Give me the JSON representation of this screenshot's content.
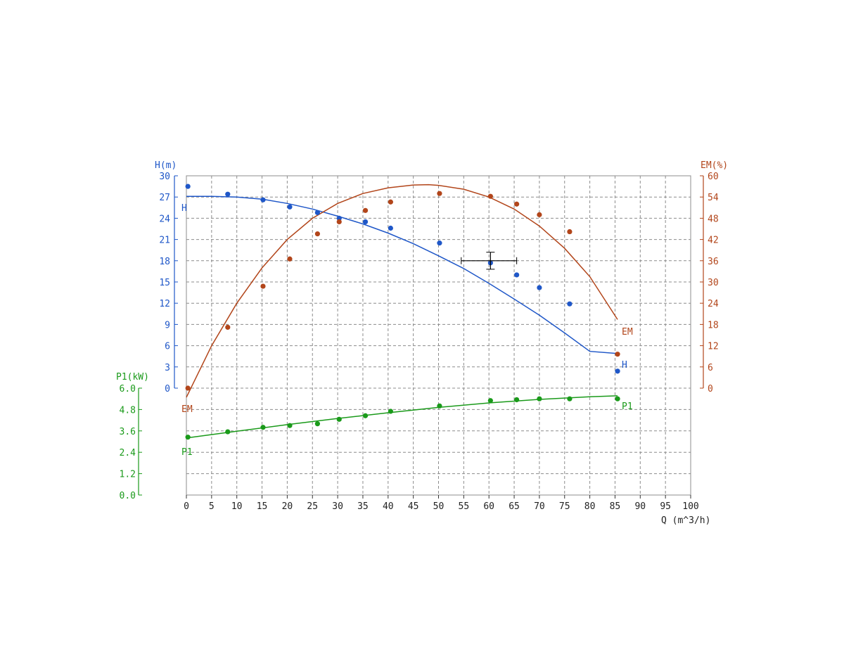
{
  "chart_data": {
    "type": "line",
    "x": {
      "label": "Q (m^3/h)",
      "range": [
        0,
        100
      ],
      "ticks": [
        "0",
        "5",
        "10",
        "15",
        "20",
        "25",
        "30",
        "35",
        "40",
        "45",
        "50",
        "55",
        "60",
        "65",
        "70",
        "75",
        "80",
        "85",
        "90",
        "95",
        "100"
      ]
    },
    "axes": {
      "H": {
        "label": "H(m)",
        "range": [
          0,
          30
        ],
        "ticks": [
          "0",
          "3",
          "6",
          "9",
          "12",
          "15",
          "18",
          "21",
          "24",
          "27",
          "30"
        ],
        "color": "#1f57c8"
      },
      "EM": {
        "label": "EM(%)",
        "range": [
          0,
          60
        ],
        "ticks": [
          "0",
          "6",
          "12",
          "18",
          "24",
          "30",
          "36",
          "42",
          "48",
          "54",
          "60"
        ],
        "color": "#b2451a"
      },
      "P1": {
        "label": "P1(kW)",
        "range": [
          0,
          6
        ],
        "ticks": [
          "0.0",
          "1.2",
          "2.4",
          "3.6",
          "4.8",
          "6.0"
        ],
        "color": "#1a9a1a"
      }
    },
    "series": [
      {
        "name": "H",
        "axis": "H",
        "color": "#1f57c8",
        "points": [
          [
            0.3,
            28.5
          ],
          [
            8.2,
            27.4
          ],
          [
            15.2,
            26.6
          ],
          [
            20.5,
            25.6
          ],
          [
            26,
            24.8
          ],
          [
            30.3,
            24.0
          ],
          [
            35.5,
            23.5
          ],
          [
            40.5,
            22.6
          ],
          [
            50.2,
            20.5
          ],
          [
            60.3,
            17.7
          ],
          [
            65.5,
            16.0
          ],
          [
            70,
            14.2
          ],
          [
            76,
            11.9
          ],
          [
            85.5,
            2.4
          ]
        ],
        "curve": [
          [
            0,
            27.1
          ],
          [
            5,
            27.1
          ],
          [
            10,
            27.0
          ],
          [
            15,
            26.7
          ],
          [
            20,
            26.1
          ],
          [
            25,
            25.3
          ],
          [
            30,
            24.3
          ],
          [
            35,
            23.2
          ],
          [
            40,
            21.9
          ],
          [
            45,
            20.4
          ],
          [
            50,
            18.7
          ],
          [
            55,
            16.9
          ],
          [
            60,
            14.8
          ],
          [
            65,
            12.6
          ],
          [
            70,
            10.3
          ],
          [
            75,
            7.8
          ],
          [
            80,
            5.2
          ],
          [
            85.5,
            4.9
          ]
        ],
        "end_label": "H"
      },
      {
        "name": "EM",
        "axis": "EM",
        "color": "#b2451a",
        "points": [
          [
            0.3,
            0.0
          ],
          [
            8.2,
            17.2
          ],
          [
            15.2,
            28.8
          ],
          [
            20.5,
            36.5
          ],
          [
            26,
            43.6
          ],
          [
            30.3,
            47.0
          ],
          [
            35.5,
            50.2
          ],
          [
            40.5,
            52.6
          ],
          [
            50.2,
            55.0
          ],
          [
            60.3,
            54.2
          ],
          [
            65.5,
            52.0
          ],
          [
            70,
            49.0
          ],
          [
            76,
            44.2
          ],
          [
            85.5,
            9.6
          ]
        ],
        "curve": [
          [
            0,
            -2.6
          ],
          [
            5,
            12.0
          ],
          [
            10,
            24.0
          ],
          [
            15,
            34.0
          ],
          [
            20,
            42.0
          ],
          [
            25,
            48.0
          ],
          [
            30,
            52.2
          ],
          [
            35,
            55.0
          ],
          [
            40,
            56.6
          ],
          [
            45,
            57.4
          ],
          [
            48,
            57.5
          ],
          [
            50,
            57.3
          ],
          [
            55,
            56.2
          ],
          [
            60,
            54.0
          ],
          [
            65,
            50.6
          ],
          [
            70,
            45.8
          ],
          [
            75,
            39.5
          ],
          [
            80,
            31.5
          ],
          [
            85.5,
            19.4
          ]
        ],
        "end_label": "EM"
      },
      {
        "name": "P1",
        "axis": "P1",
        "color": "#1a9a1a",
        "points": [
          [
            0.3,
            3.25
          ],
          [
            8.2,
            3.55
          ],
          [
            15.2,
            3.8
          ],
          [
            20.5,
            3.9
          ],
          [
            26,
            4.0
          ],
          [
            30.3,
            4.25
          ],
          [
            35.5,
            4.45
          ],
          [
            40.5,
            4.7
          ],
          [
            50.2,
            5.0
          ],
          [
            60.3,
            5.3
          ],
          [
            65.5,
            5.35
          ],
          [
            70,
            5.4
          ],
          [
            76,
            5.4
          ],
          [
            85.5,
            5.4
          ]
        ],
        "curve": [
          [
            0,
            3.2
          ],
          [
            10,
            3.58
          ],
          [
            20,
            3.95
          ],
          [
            30,
            4.3
          ],
          [
            40,
            4.62
          ],
          [
            50,
            4.92
          ],
          [
            60,
            5.17
          ],
          [
            70,
            5.37
          ],
          [
            80,
            5.52
          ],
          [
            85.5,
            5.57
          ]
        ],
        "end_label": "P1"
      }
    ],
    "operating_point": {
      "q": 60.3,
      "h": 18.0,
      "q_range": [
        54.5,
        65.5
      ],
      "h_range": [
        16.8,
        19.2
      ]
    },
    "grid": true
  }
}
